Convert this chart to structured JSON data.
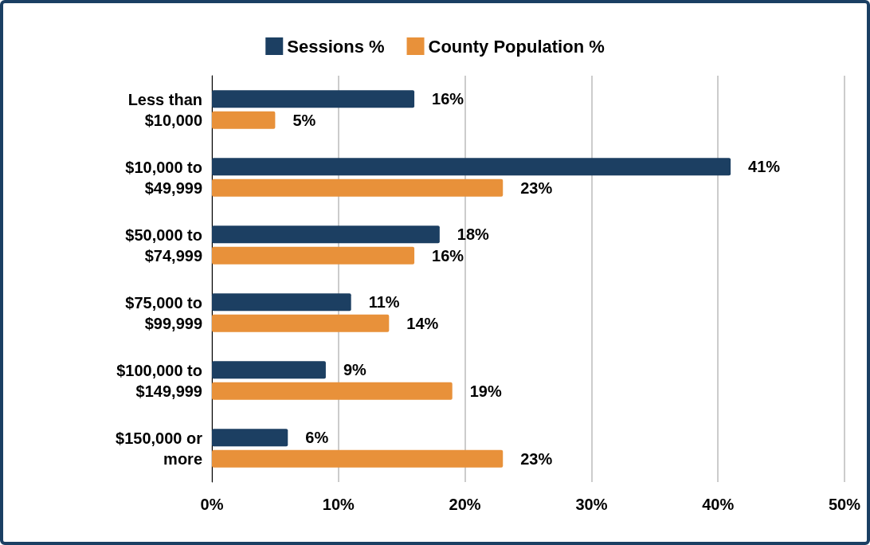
{
  "chart_data": {
    "type": "bar",
    "orientation": "horizontal",
    "categories": [
      "Less than $10,000",
      "$10,000 to $49,999",
      "$50,000 to $74,999",
      "$75,000 to $99,999",
      "$100,000 to $149,999",
      "$150,000 or more"
    ],
    "series": [
      {
        "name": "Sessions %",
        "color": "#1c3f62",
        "values": [
          16,
          41,
          18,
          11,
          9,
          6
        ],
        "value_labels": [
          "16%",
          "41%",
          "18%",
          "11%",
          "9%",
          "6%"
        ]
      },
      {
        "name": "County Population %",
        "color": "#e8913a",
        "values": [
          5,
          23,
          16,
          14,
          19,
          23
        ],
        "value_labels": [
          "5%",
          "23%",
          "16%",
          "14%",
          "19%",
          "23%"
        ]
      }
    ],
    "xlim": [
      0,
      50
    ],
    "xticks": [
      {
        "value": 0,
        "label": "0%"
      },
      {
        "value": 10,
        "label": "10%"
      },
      {
        "value": 20,
        "label": "20%"
      },
      {
        "value": 30,
        "label": "30%"
      },
      {
        "value": 40,
        "label": "40%"
      },
      {
        "value": 50,
        "label": "50%"
      }
    ],
    "grid": "x",
    "legend": "top"
  }
}
